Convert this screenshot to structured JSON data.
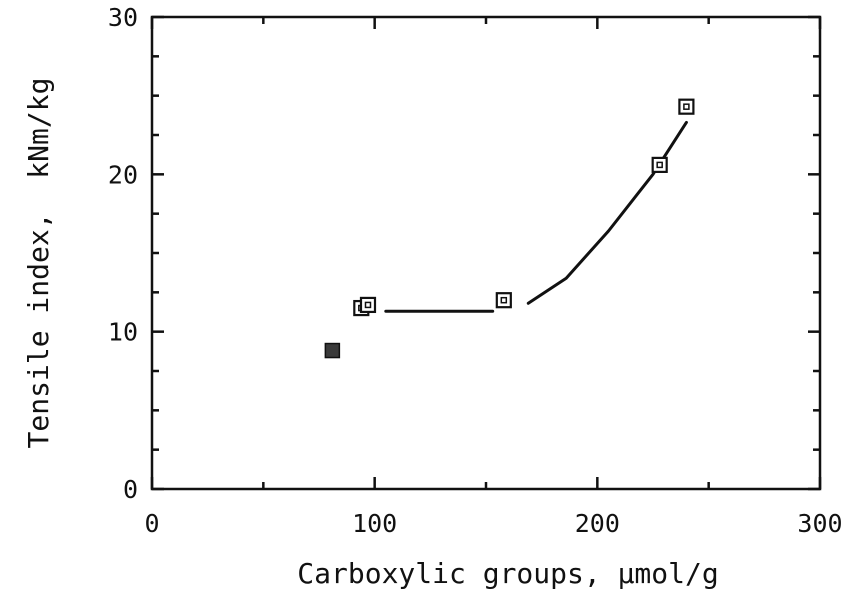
{
  "chart_data": {
    "type": "scatter",
    "title": "",
    "xlabel": "Carboxylic groups, µmol/g",
    "ylabel": "Tensile index,  kNm/kg",
    "xlim": [
      0,
      300
    ],
    "ylim": [
      0,
      30
    ],
    "x_ticks": [
      0,
      100,
      200,
      300
    ],
    "y_ticks": [
      0,
      10,
      20,
      30
    ],
    "grid": false,
    "legend": "none",
    "colors": {
      "ink": "#111111",
      "background": "#ffffff"
    },
    "series": [
      {
        "marker": "open-square-with-dot",
        "points": [
          {
            "x": 94,
            "y": 11.5
          },
          {
            "x": 97,
            "y": 11.7
          },
          {
            "x": 158,
            "y": 12.0
          },
          {
            "x": 228,
            "y": 20.6
          },
          {
            "x": 240,
            "y": 24.3
          }
        ]
      },
      {
        "marker": "filled-square",
        "points": [
          {
            "x": 81,
            "y": 8.8
          }
        ]
      }
    ],
    "trend_lines": [
      {
        "points": [
          {
            "x": 105,
            "y": 11.3
          },
          {
            "x": 153,
            "y": 11.3
          }
        ]
      },
      {
        "points": [
          {
            "x": 169,
            "y": 11.8
          },
          {
            "x": 186,
            "y": 13.4
          },
          {
            "x": 205,
            "y": 16.4
          },
          {
            "x": 225,
            "y": 20.0
          },
          {
            "x": 240,
            "y": 23.3
          }
        ]
      }
    ]
  }
}
